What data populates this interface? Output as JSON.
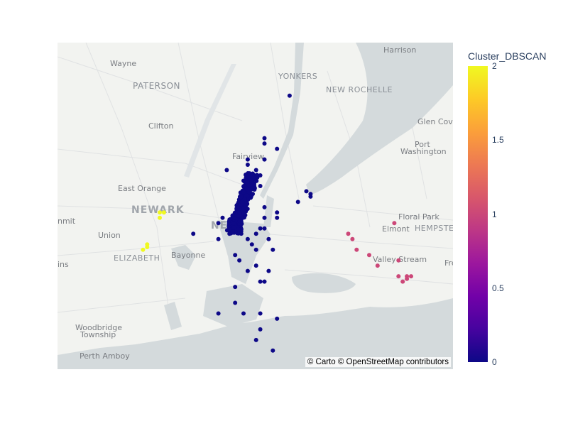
{
  "map": {
    "attribution": "© Carto © OpenStreetMap contributors",
    "places": [
      {
        "name": "Harrison",
        "type": "town"
      },
      {
        "name": "Wayne",
        "type": "town"
      },
      {
        "name": "PATERSON",
        "type": "city"
      },
      {
        "name": "YONKERS",
        "type": "city"
      },
      {
        "name": "NEW ROCHELLE",
        "type": "city"
      },
      {
        "name": "Clifton",
        "type": "town"
      },
      {
        "name": "Glen Cove",
        "type": "town"
      },
      {
        "name": "Port",
        "type": "town"
      },
      {
        "name": "Washington",
        "type": "town"
      },
      {
        "name": "Fairview",
        "type": "town"
      },
      {
        "name": "East Orange",
        "type": "town"
      },
      {
        "name": "NEWARK",
        "type": "big"
      },
      {
        "name": "NEW",
        "type": "big"
      },
      {
        "name": "Floral Park",
        "type": "town"
      },
      {
        "name": "Elmont",
        "type": "town"
      },
      {
        "name": "HEMPSTE",
        "type": "city"
      },
      {
        "name": "nmit",
        "type": "town"
      },
      {
        "name": "Union",
        "type": "town"
      },
      {
        "name": "ELIZABETH",
        "type": "city"
      },
      {
        "name": "Bayonne",
        "type": "town"
      },
      {
        "name": "Valley Stream",
        "type": "town"
      },
      {
        "name": "ins",
        "type": "town"
      },
      {
        "name": "Fre",
        "type": "town"
      },
      {
        "name": "Woodbridge",
        "type": "town"
      },
      {
        "name": "Township",
        "type": "town"
      },
      {
        "name": "Perth Amboy",
        "type": "town"
      }
    ]
  },
  "colorbar": {
    "title": "Cluster_DBSCAN",
    "range": [
      0,
      2
    ],
    "ticks": [
      {
        "label": "2",
        "value": 2
      },
      {
        "label": "1.5",
        "value": 1.5
      },
      {
        "label": "1",
        "value": 1
      },
      {
        "label": "0.5",
        "value": 0.5
      },
      {
        "label": "0",
        "value": 0
      }
    ],
    "colorscale": [
      "#0d0887",
      "#46039f",
      "#7201a8",
      "#9c179e",
      "#bd3786",
      "#d8576b",
      "#ed7953",
      "#fb9f3a",
      "#fdca26",
      "#f0f921"
    ]
  },
  "chart_data": {
    "type": "scatter",
    "x_axis": "longitude",
    "y_axis": "latitude",
    "color_variable": "Cluster_DBSCAN",
    "clusters": [
      {
        "cluster": 0,
        "points": [
          [
            -73.87,
            40.95
          ],
          [
            -73.93,
            40.87
          ],
          [
            -73.93,
            40.86
          ],
          [
            -73.9,
            40.85
          ],
          [
            -73.97,
            40.83
          ],
          [
            -73.93,
            40.83
          ],
          [
            -73.95,
            40.81
          ],
          [
            -73.97,
            40.82
          ],
          [
            -74.02,
            40.81
          ],
          [
            -73.97,
            40.8
          ],
          [
            -73.94,
            40.8
          ],
          [
            -73.98,
            40.79
          ],
          [
            -73.96,
            40.78
          ],
          [
            -73.94,
            40.78
          ],
          [
            -73.83,
            40.77
          ],
          [
            -73.82,
            40.76
          ],
          [
            -73.82,
            40.765
          ],
          [
            -73.85,
            40.75
          ],
          [
            -74.03,
            40.72
          ],
          [
            -74.1,
            40.69
          ],
          [
            -74.04,
            40.71
          ],
          [
            -74.04,
            40.68
          ],
          [
            -73.93,
            40.72
          ],
          [
            -73.93,
            40.7
          ],
          [
            -73.92,
            40.68
          ],
          [
            -73.91,
            40.66
          ],
          [
            -73.95,
            40.66
          ],
          [
            -73.99,
            40.64
          ],
          [
            -74.0,
            40.65
          ],
          [
            -73.97,
            40.62
          ],
          [
            -73.95,
            40.63
          ],
          [
            -73.92,
            40.62
          ],
          [
            -73.94,
            40.6
          ],
          [
            -73.93,
            40.6
          ],
          [
            -74.0,
            40.59
          ],
          [
            -74.0,
            40.56
          ],
          [
            -74.04,
            40.54
          ],
          [
            -73.98,
            40.54
          ],
          [
            -73.94,
            40.54
          ],
          [
            -73.9,
            40.53
          ],
          [
            -73.94,
            40.51
          ],
          [
            -73.95,
            40.49
          ],
          [
            -73.91,
            40.47
          ],
          [
            -73.95,
            40.69
          ],
          [
            -73.97,
            40.68
          ],
          [
            -73.96,
            40.67
          ],
          [
            -73.94,
            40.7
          ],
          [
            -73.9,
            40.72
          ],
          [
            -73.9,
            40.73
          ],
          [
            -73.93,
            40.74
          ]
        ],
        "dense_core": {
          "center": [
            -73.98,
            40.75
          ],
          "approx_count": "many (several hundred)",
          "description": "Manhattan / Midtown concentration"
        }
      },
      {
        "cluster": 1,
        "points": [
          [
            -73.73,
            40.69
          ],
          [
            -73.72,
            40.68
          ],
          [
            -73.71,
            40.66
          ],
          [
            -73.68,
            40.65
          ],
          [
            -73.66,
            40.63
          ],
          [
            -73.62,
            40.71
          ],
          [
            -73.61,
            40.64
          ],
          [
            -73.61,
            40.61
          ],
          [
            -73.6,
            40.6
          ],
          [
            -73.59,
            40.61
          ],
          [
            -73.58,
            40.61
          ],
          [
            -73.59,
            40.605
          ]
        ]
      },
      {
        "cluster": 2,
        "points": [
          [
            -74.18,
            40.73
          ],
          [
            -74.17,
            40.73
          ],
          [
            -74.18,
            40.72
          ],
          [
            -74.21,
            40.67
          ],
          [
            -74.22,
            40.66
          ],
          [
            -74.21,
            40.665
          ]
        ]
      }
    ]
  }
}
